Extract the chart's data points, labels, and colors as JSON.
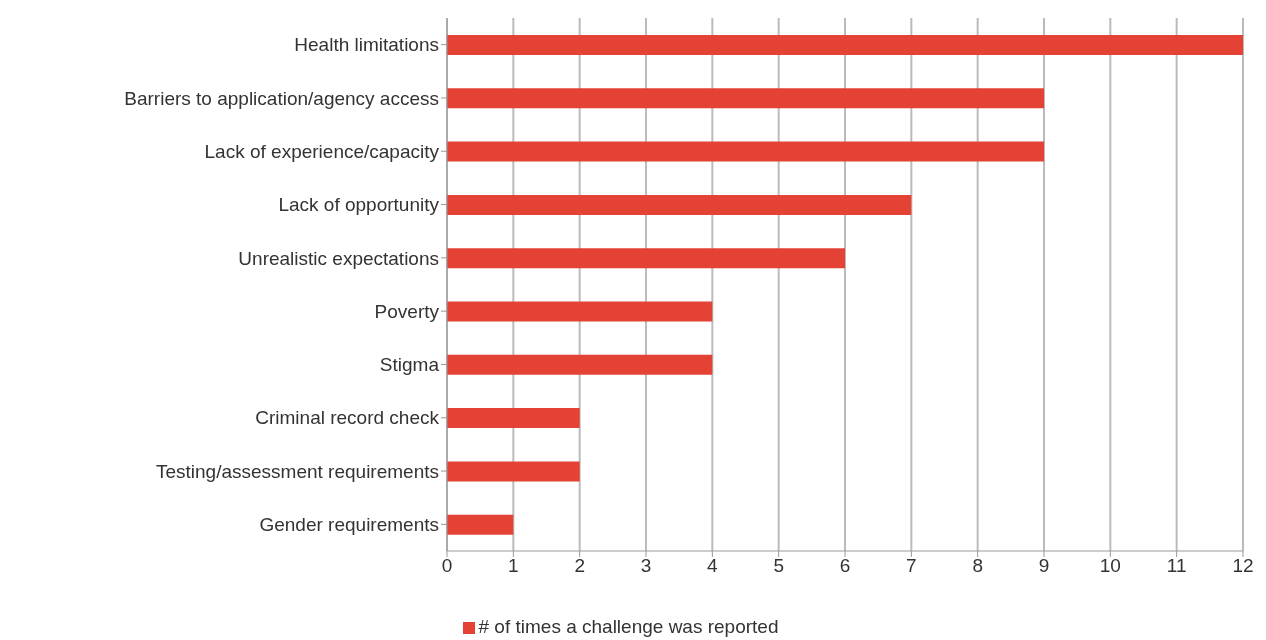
{
  "chart_data": {
    "type": "bar",
    "orientation": "horizontal",
    "categories": [
      "Health limitations",
      "Barriers to application/agency access",
      "Lack of experience/capacity",
      "Lack of opportunity",
      "Unrealistic expectations",
      "Poverty",
      "Stigma",
      "Criminal record check",
      "Testing/assessment requirements",
      "Gender requirements"
    ],
    "series": [
      {
        "name": "# of times a challenge was reported",
        "color": "#e34234",
        "values": [
          12,
          9,
          9,
          7,
          6,
          4,
          4,
          2,
          2,
          1
        ]
      }
    ],
    "xlim": [
      0,
      12
    ],
    "xticks": [
      0,
      1,
      2,
      3,
      4,
      5,
      6,
      7,
      8,
      9,
      10,
      11,
      12
    ],
    "grid": "x",
    "legend": "bottom"
  }
}
